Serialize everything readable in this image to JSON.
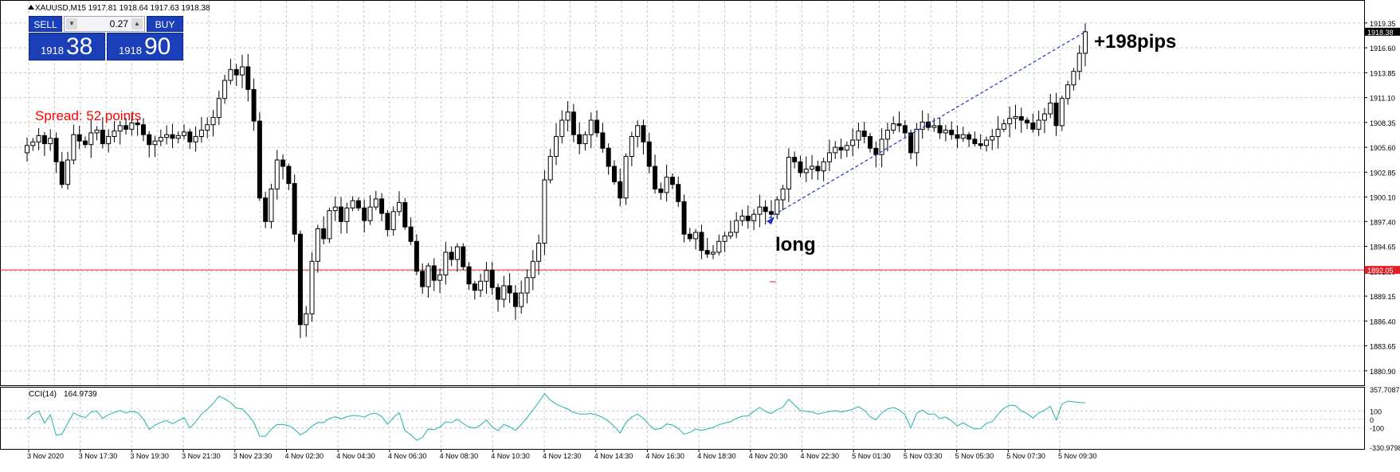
{
  "header": {
    "symbol_line": "XAUUSD,M15  1917.81 1918.64 1917.63 1918.38"
  },
  "trade_panel": {
    "sell_label": "SELL",
    "buy_label": "BUY",
    "lot_value": "0.27",
    "sell_price_small": "1918",
    "sell_price_big": "38",
    "buy_price_small": "1918",
    "buy_price_big": "90"
  },
  "annotations": {
    "spread": "Spread: 52 points",
    "long": "long",
    "pips": "+198pips"
  },
  "colors": {
    "grid": "#c8c8c8",
    "candle_bull": "#ffffff",
    "candle_bear": "#000000",
    "bid_line": "#e0202a",
    "cci_line": "#20b2aa",
    "trend_line": "#2030d0",
    "trade_panel": "#1a3fb8",
    "spread_text": "#ff0000"
  },
  "chart_data": [
    {
      "type": "candlestick",
      "title": "XAUUSD,M15",
      "ylim": [
        1880.9,
        1920.0
      ],
      "y_tick_labels": [
        "1919.35",
        "1916.60",
        "1913.85",
        "1911.10",
        "1908.35",
        "1905.60",
        "1902.85",
        "1900.10",
        "1897.40",
        "1894.65",
        "1891.90",
        "1889.15",
        "1886.40",
        "1883.65",
        "1880.90"
      ],
      "current_price": "1918.38",
      "bid_line": "1892.05",
      "x_tick_labels": [
        "3 Nov 2020",
        "3 Nov 17:30",
        "3 Nov 19:30",
        "3 Nov 21:30",
        "3 Nov 23:30",
        "4 Nov 02:30",
        "4 Nov 04:30",
        "4 Nov 06:30",
        "4 Nov 08:30",
        "4 Nov 10:30",
        "4 Nov 12:30",
        "4 Nov 14:30",
        "4 Nov 16:30",
        "4 Nov 18:30",
        "4 Nov 20:30",
        "4 Nov 22:30",
        "5 Nov 01:30",
        "5 Nov 03:30",
        "5 Nov 05:30",
        "5 Nov 07:30",
        "5 Nov 09:30"
      ],
      "close": [
        1905.8,
        1906.2,
        1906.9,
        1906.0,
        1906.6,
        1904.0,
        1901.5,
        1904.2,
        1907.0,
        1906.3,
        1905.9,
        1907.2,
        1907.5,
        1906.0,
        1906.8,
        1907.4,
        1908.0,
        1907.6,
        1908.3,
        1908.1,
        1907.0,
        1905.9,
        1906.3,
        1906.7,
        1907.0,
        1906.6,
        1906.9,
        1907.3,
        1906.2,
        1906.8,
        1907.5,
        1908.1,
        1908.9,
        1911.0,
        1913.0,
        1914.2,
        1913.6,
        1914.5,
        1912.0,
        1908.5,
        1900.0,
        1897.4,
        1901.0,
        1904.2,
        1903.5,
        1901.6,
        1896.0,
        1886.0,
        1887.2,
        1893.0,
        1896.6,
        1895.5,
        1898.6,
        1899.0,
        1897.4,
        1898.9,
        1899.7,
        1898.9,
        1897.5,
        1899.0,
        1899.9,
        1898.3,
        1896.5,
        1898.5,
        1899.5,
        1896.8,
        1895.2,
        1891.9,
        1890.2,
        1892.5,
        1890.9,
        1891.5,
        1894.0,
        1893.2,
        1894.6,
        1892.4,
        1890.5,
        1889.8,
        1890.8,
        1892.0,
        1890.1,
        1888.8,
        1890.3,
        1889.5,
        1888.0,
        1889.5,
        1891.2,
        1893.0,
        1895.0,
        1902.0,
        1904.6,
        1906.8,
        1908.6,
        1909.5,
        1907.0,
        1906.0,
        1907.0,
        1908.6,
        1907.2,
        1905.5,
        1903.5,
        1901.8,
        1900.0,
        1904.6,
        1906.8,
        1908.0,
        1906.2,
        1903.5,
        1901.0,
        1900.6,
        1902.3,
        1901.5,
        1899.6,
        1896.0,
        1895.5,
        1896.2,
        1894.2,
        1893.8,
        1894.0,
        1895.2,
        1895.8,
        1896.2,
        1897.5,
        1898.0,
        1897.5,
        1898.2,
        1899.0,
        1898.5,
        1898.2,
        1899.8,
        1901.0,
        1904.5,
        1904.0,
        1902.8,
        1903.2,
        1903.5,
        1903.0,
        1904.0,
        1905.0,
        1905.6,
        1905.3,
        1905.8,
        1906.4,
        1907.4,
        1906.8,
        1905.5,
        1904.8,
        1906.5,
        1907.5,
        1908.2,
        1908.0,
        1907.2,
        1905.0,
        1907.6,
        1908.4,
        1907.8,
        1908.0,
        1907.2,
        1907.5,
        1907.0,
        1906.6,
        1907.0,
        1906.5,
        1906.0,
        1905.8,
        1906.4,
        1906.8,
        1907.6,
        1908.2,
        1908.8,
        1909.0,
        1908.6,
        1908.3,
        1907.6,
        1908.6,
        1909.3,
        1910.5,
        1908.0,
        1911.0,
        1912.5,
        1914.0,
        1916.0,
        1918.38
      ],
      "ohlc_mode": "generated-from-close",
      "indicator": {
        "name": "CCI(14)",
        "value": "164.9739",
        "ylim": [
          -330.9798,
          357.7087
        ],
        "y_tick_labels": [
          "357.7087",
          "100",
          "0",
          "-100",
          "-330.9798"
        ]
      }
    }
  ]
}
